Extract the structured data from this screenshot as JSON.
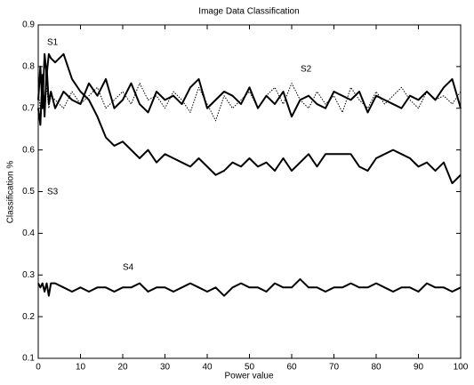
{
  "chart_data": {
    "type": "line",
    "title": "Image Data Classification",
    "x_label": "Power value",
    "y_label": "Classification %",
    "x": [
      0,
      0.5,
      1,
      1.5,
      2,
      2.5,
      3,
      4,
      6,
      8,
      10,
      12,
      14,
      16,
      18,
      20,
      22,
      24,
      26,
      28,
      30,
      32,
      34,
      36,
      38,
      40,
      42,
      44,
      46,
      48,
      50,
      52,
      54,
      56,
      58,
      60,
      62,
      64,
      66,
      68,
      70,
      72,
      74,
      76,
      78,
      80,
      82,
      84,
      86,
      88,
      90,
      92,
      94,
      96,
      98,
      100
    ],
    "series": [
      {
        "name": "S1",
        "color": "#000000",
        "style": "solid",
        "values": [
          0.72,
          0.8,
          0.7,
          0.83,
          0.78,
          0.83,
          0.82,
          0.81,
          0.83,
          0.77,
          0.74,
          0.72,
          0.68,
          0.63,
          0.61,
          0.62,
          0.6,
          0.58,
          0.6,
          0.57,
          0.59,
          0.58,
          0.57,
          0.56,
          0.58,
          0.56,
          0.54,
          0.55,
          0.57,
          0.56,
          0.58,
          0.56,
          0.57,
          0.55,
          0.58,
          0.55,
          0.57,
          0.59,
          0.56,
          0.59,
          0.59,
          0.59,
          0.59,
          0.56,
          0.55,
          0.58,
          0.59,
          0.6,
          0.59,
          0.58,
          0.56,
          0.57,
          0.55,
          0.57,
          0.52,
          0.54
        ]
      },
      {
        "name": "S2",
        "color": "#000000",
        "style": "dotted",
        "values": [
          0.74,
          0.7,
          0.76,
          0.72,
          0.75,
          0.7,
          0.73,
          0.72,
          0.7,
          0.74,
          0.71,
          0.73,
          0.75,
          0.7,
          0.72,
          0.74,
          0.71,
          0.76,
          0.72,
          0.73,
          0.7,
          0.74,
          0.72,
          0.69,
          0.75,
          0.71,
          0.67,
          0.73,
          0.7,
          0.72,
          0.74,
          0.7,
          0.73,
          0.75,
          0.71,
          0.76,
          0.72,
          0.7,
          0.74,
          0.71,
          0.73,
          0.69,
          0.75,
          0.72,
          0.7,
          0.74,
          0.71,
          0.73,
          0.75,
          0.72,
          0.7,
          0.74,
          0.72,
          0.73,
          0.71,
          0.74
        ]
      },
      {
        "name": "S3",
        "color": "#000000",
        "style": "solid",
        "values": [
          0.7,
          0.66,
          0.78,
          0.68,
          0.8,
          0.71,
          0.74,
          0.7,
          0.74,
          0.72,
          0.71,
          0.76,
          0.73,
          0.77,
          0.7,
          0.72,
          0.76,
          0.71,
          0.69,
          0.74,
          0.72,
          0.73,
          0.71,
          0.75,
          0.77,
          0.7,
          0.72,
          0.74,
          0.73,
          0.71,
          0.75,
          0.7,
          0.73,
          0.71,
          0.74,
          0.68,
          0.72,
          0.73,
          0.71,
          0.7,
          0.74,
          0.73,
          0.72,
          0.74,
          0.69,
          0.73,
          0.72,
          0.71,
          0.7,
          0.73,
          0.72,
          0.74,
          0.72,
          0.75,
          0.77,
          0.7
        ]
      },
      {
        "name": "S4",
        "color": "#000000",
        "style": "solid",
        "values": [
          0.28,
          0.27,
          0.28,
          0.26,
          0.28,
          0.25,
          0.28,
          0.28,
          0.27,
          0.26,
          0.27,
          0.26,
          0.27,
          0.27,
          0.26,
          0.27,
          0.27,
          0.28,
          0.26,
          0.27,
          0.27,
          0.26,
          0.27,
          0.28,
          0.27,
          0.26,
          0.27,
          0.25,
          0.27,
          0.28,
          0.27,
          0.27,
          0.26,
          0.28,
          0.27,
          0.27,
          0.29,
          0.27,
          0.27,
          0.26,
          0.27,
          0.27,
          0.28,
          0.27,
          0.27,
          0.28,
          0.27,
          0.26,
          0.27,
          0.27,
          0.26,
          0.28,
          0.27,
          0.27,
          0.26,
          0.27
        ]
      }
    ],
    "xlim": [
      0,
      100
    ],
    "xticks": [
      0,
      10,
      20,
      30,
      40,
      50,
      60,
      70,
      80,
      90,
      100
    ],
    "ylim": [
      0.1,
      0.9
    ],
    "yticks": [
      0.1,
      0.2,
      0.3,
      0.4,
      0.5,
      0.6,
      0.7,
      0.8,
      0.9
    ],
    "grid": false
  }
}
